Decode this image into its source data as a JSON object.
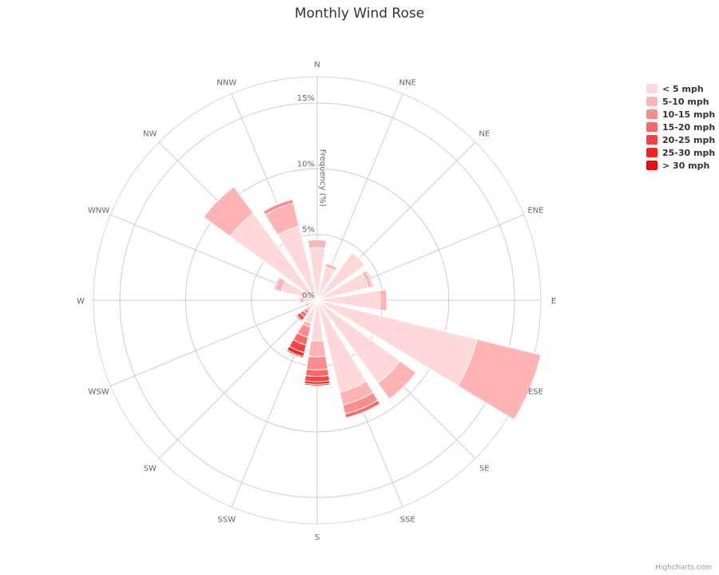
{
  "chart_data": {
    "type": "polar-stacked-column",
    "title": "Monthly Wind Rose",
    "directions": [
      "N",
      "NNE",
      "NE",
      "ENE",
      "E",
      "ESE",
      "SE",
      "SSE",
      "S",
      "SSW",
      "SW",
      "WSW",
      "W",
      "WNW",
      "NW",
      "NNW"
    ],
    "radial_axis": {
      "title": "Frequency (%)",
      "ticks": [
        "0%",
        "5%",
        "10%",
        "15%"
      ],
      "tick_values": [
        0,
        5,
        10,
        15
      ],
      "max": 17
    },
    "series": [
      {
        "name": "< 5 mph",
        "color": "#ffd9d9",
        "values": [
          4.0,
          2.6,
          4.5,
          4.0,
          4.8,
          12.5,
          7.8,
          7.2,
          3.1,
          1.8,
          0.8,
          0.5,
          1.0,
          2.8,
          8.2,
          5.8
        ]
      },
      {
        "name": "5-10 mph",
        "color": "#ffb3b3",
        "values": [
          0.6,
          0.3,
          0.0,
          0.3,
          0.5,
          5.0,
          1.5,
          1.0,
          1.2,
          0.3,
          0.2,
          0.1,
          0.3,
          0.5,
          2.5,
          1.8
        ]
      },
      {
        "name": "10-15 mph",
        "color": "#ff8c8c",
        "values": [
          0.05,
          0.05,
          0.0,
          0.1,
          0.0,
          0.0,
          0.0,
          0.7,
          1.0,
          0.8,
          0.3,
          0.1,
          0.1,
          0.1,
          0.0,
          0.3
        ]
      },
      {
        "name": "15-20 mph",
        "color": "#ff6666",
        "values": [
          0.0,
          0.0,
          0.0,
          0.0,
          0.0,
          0.0,
          0.0,
          0.3,
          0.5,
          0.6,
          0.3,
          0.1,
          0.0,
          0.0,
          0.0,
          0.05
        ]
      },
      {
        "name": "20-25 mph",
        "color": "#ff4040",
        "values": [
          0.0,
          0.0,
          0.0,
          0.0,
          0.0,
          0.0,
          0.0,
          0.0,
          0.4,
          0.6,
          0.3,
          0.1,
          0.0,
          0.0,
          0.0,
          0.0
        ]
      },
      {
        "name": "25-30 mph",
        "color": "#ff1f1f",
        "values": [
          0.0,
          0.0,
          0.0,
          0.0,
          0.0,
          0.0,
          0.0,
          0.0,
          0.2,
          0.3,
          0.1,
          0.0,
          0.0,
          0.0,
          0.0,
          0.0
        ]
      },
      {
        "name": "> 30 mph",
        "color": "#ff0000",
        "values": [
          0.0,
          0.0,
          0.0,
          0.0,
          0.0,
          0.0,
          0.0,
          0.0,
          0.1,
          0.1,
          0.05,
          0.0,
          0.0,
          0.0,
          0.0,
          0.0
        ]
      }
    ],
    "legend_position": "right",
    "grid": true
  },
  "credits": "Highcharts.com"
}
